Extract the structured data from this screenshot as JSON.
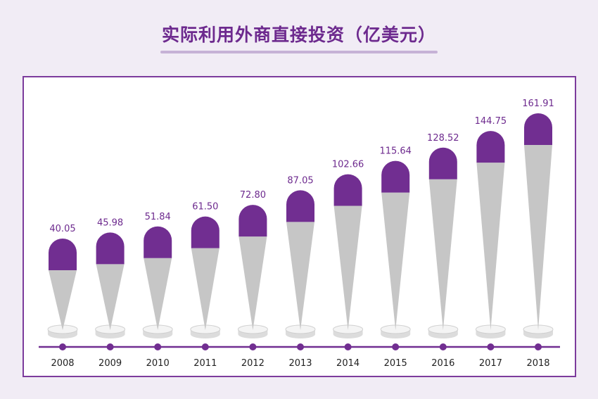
{
  "title": "实际利用外商直接投资（亿美元）",
  "colors": {
    "accent": "#712e91",
    "cone": "#c6c6c6",
    "panel_border": "#7c3b9c",
    "background": "#f1ecf5"
  },
  "chart_data": {
    "type": "bar",
    "title": "实际利用外商直接投资（亿美元）",
    "xlabel": "",
    "ylabel": "",
    "categories": [
      "2008",
      "2009",
      "2010",
      "2011",
      "2012",
      "2013",
      "2014",
      "2015",
      "2016",
      "2017",
      "2018"
    ],
    "values": [
      40.05,
      45.98,
      51.84,
      61.5,
      72.8,
      87.05,
      102.66,
      115.64,
      128.52,
      144.75,
      161.91
    ],
    "value_labels": [
      "40.05",
      "45.98",
      "51.84",
      "61.50",
      "72.80",
      "87.05",
      "102.66",
      "115.64",
      "128.52",
      "144.75",
      "161.91"
    ],
    "grid": false,
    "legend": "none"
  }
}
